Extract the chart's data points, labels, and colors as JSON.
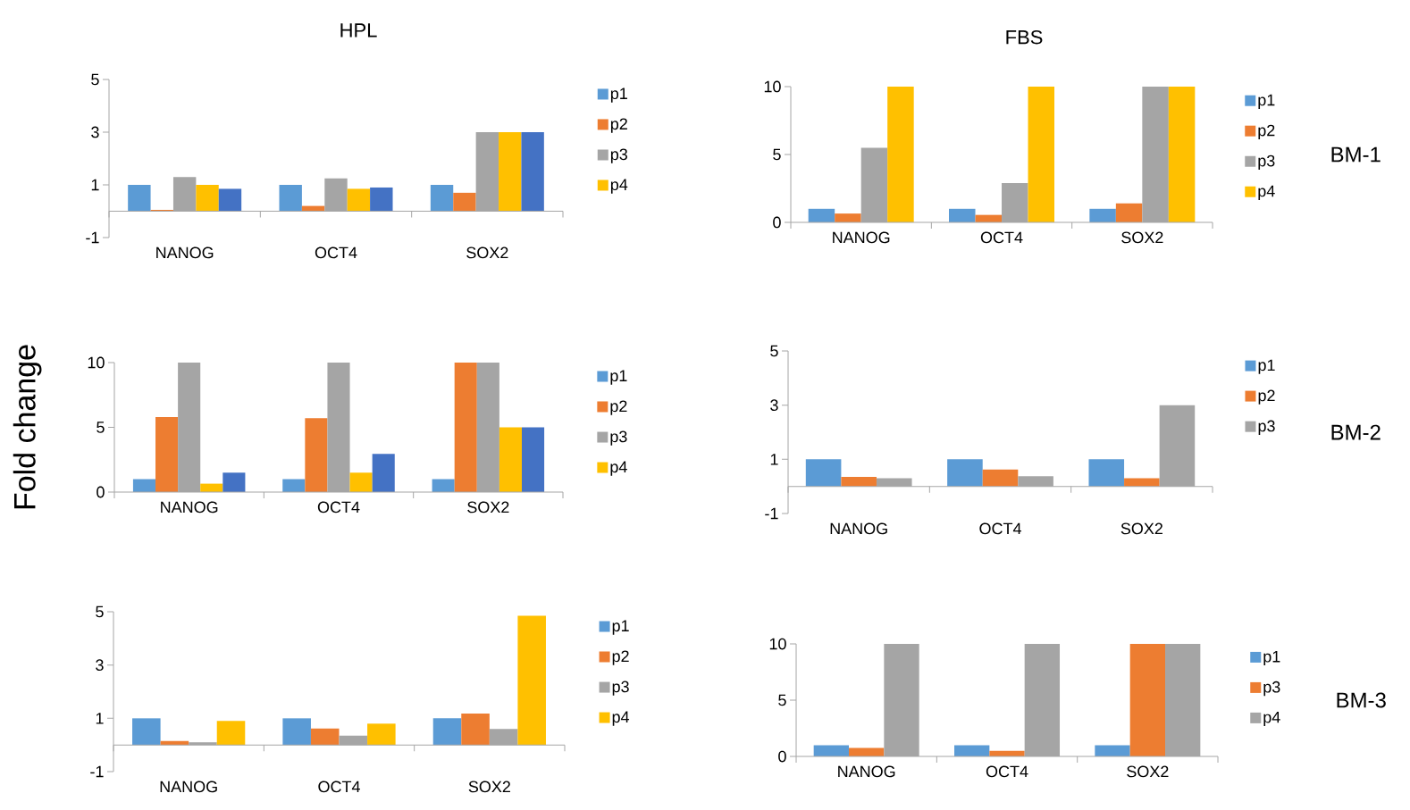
{
  "chart_data": [
    {
      "type": "bar",
      "title": "HPL",
      "categories": [
        "NANOG",
        "OCT4",
        "SOX2"
      ],
      "ylim": [
        -1,
        5
      ],
      "yticks": [
        -1,
        1,
        3,
        5
      ],
      "legend": "right",
      "series": [
        {
          "name": "p1",
          "color": "#5b9bd5",
          "values": [
            1,
            1,
            1
          ]
        },
        {
          "name": "p2",
          "color": "#ed7d31",
          "values": [
            0.05,
            0.2,
            0.7
          ]
        },
        {
          "name": "p3",
          "color": "#a5a5a5",
          "values": [
            1.3,
            1.25,
            3
          ]
        },
        {
          "name": "p4",
          "color": "#ffc000",
          "values": [
            1,
            0.85,
            3
          ]
        },
        {
          "color": "#4472c4",
          "values": [
            0.85,
            0.9,
            3
          ]
        }
      ]
    },
    {
      "type": "bar",
      "title": "FBS",
      "annotations": [
        "BM-1"
      ],
      "categories": [
        "NANOG",
        "OCT4",
        "SOX2"
      ],
      "ylim": [
        0,
        10
      ],
      "yticks": [
        0,
        5,
        10
      ],
      "legend": "right",
      "series": [
        {
          "name": "p1",
          "color": "#5b9bd5",
          "values": [
            1,
            1,
            1
          ]
        },
        {
          "name": "p2",
          "color": "#ed7d31",
          "values": [
            0.65,
            0.55,
            1.4
          ]
        },
        {
          "name": "p3",
          "color": "#a5a5a5",
          "values": [
            5.5,
            2.9,
            10
          ]
        },
        {
          "name": "p4",
          "color": "#ffc000",
          "values": [
            10,
            10,
            10
          ]
        }
      ]
    },
    {
      "type": "bar",
      "ylabel": "Fold change",
      "categories": [
        "NANOG",
        "OCT4",
        "SOX2"
      ],
      "ylim": [
        0,
        10
      ],
      "yticks": [
        0,
        5,
        10
      ],
      "legend": "right",
      "series": [
        {
          "name": "p1",
          "color": "#5b9bd5",
          "values": [
            1,
            1,
            1
          ]
        },
        {
          "name": "p2",
          "color": "#ed7d31",
          "values": [
            5.8,
            5.7,
            10
          ]
        },
        {
          "name": "p3",
          "color": "#a5a5a5",
          "values": [
            10,
            10,
            10
          ]
        },
        {
          "name": "p4",
          "color": "#ffc000",
          "values": [
            0.65,
            1.5,
            5
          ]
        },
        {
          "color": "#4472c4",
          "values": [
            1.5,
            2.95,
            5
          ]
        }
      ]
    },
    {
      "type": "bar",
      "annotations": [
        "BM-2"
      ],
      "categories": [
        "NANOG",
        "OCT4",
        "SOX2"
      ],
      "ylim": [
        -1,
        5
      ],
      "yticks": [
        -1,
        1,
        3,
        5
      ],
      "legend": "right",
      "series": [
        {
          "name": "p1",
          "color": "#5b9bd5",
          "values": [
            1,
            1,
            1
          ]
        },
        {
          "name": "p2",
          "color": "#ed7d31",
          "values": [
            0.35,
            0.62,
            0.3
          ]
        },
        {
          "name": "p3",
          "color": "#a5a5a5",
          "values": [
            0.3,
            0.38,
            3
          ]
        }
      ]
    },
    {
      "type": "bar",
      "categories": [
        "NANOG",
        "OCT4",
        "SOX2"
      ],
      "ylim": [
        -1,
        5
      ],
      "yticks": [
        -1,
        1,
        3,
        5
      ],
      "legend": "right",
      "series": [
        {
          "name": "p1",
          "color": "#5b9bd5",
          "values": [
            1,
            1,
            1
          ]
        },
        {
          "name": "p2",
          "color": "#ed7d31",
          "values": [
            0.15,
            0.62,
            1.18
          ]
        },
        {
          "name": "p3",
          "color": "#a5a5a5",
          "values": [
            0.1,
            0.35,
            0.6
          ]
        },
        {
          "name": "p4",
          "color": "#ffc000",
          "values": [
            0.9,
            0.8,
            4.85
          ]
        }
      ]
    },
    {
      "type": "bar",
      "annotations": [
        "BM-3"
      ],
      "categories": [
        "NANOG",
        "OCT4",
        "SOX2"
      ],
      "ylim": [
        0,
        10
      ],
      "yticks": [
        0,
        5,
        10
      ],
      "legend": "right",
      "series": [
        {
          "name": "p1",
          "color": "#5b9bd5",
          "values": [
            1,
            1,
            1
          ]
        },
        {
          "name": "p3",
          "color": "#ed7d31",
          "values": [
            0.75,
            0.5,
            10
          ]
        },
        {
          "name": "p4",
          "color": "#a5a5a5",
          "values": [
            10,
            10,
            10
          ]
        }
      ]
    }
  ]
}
